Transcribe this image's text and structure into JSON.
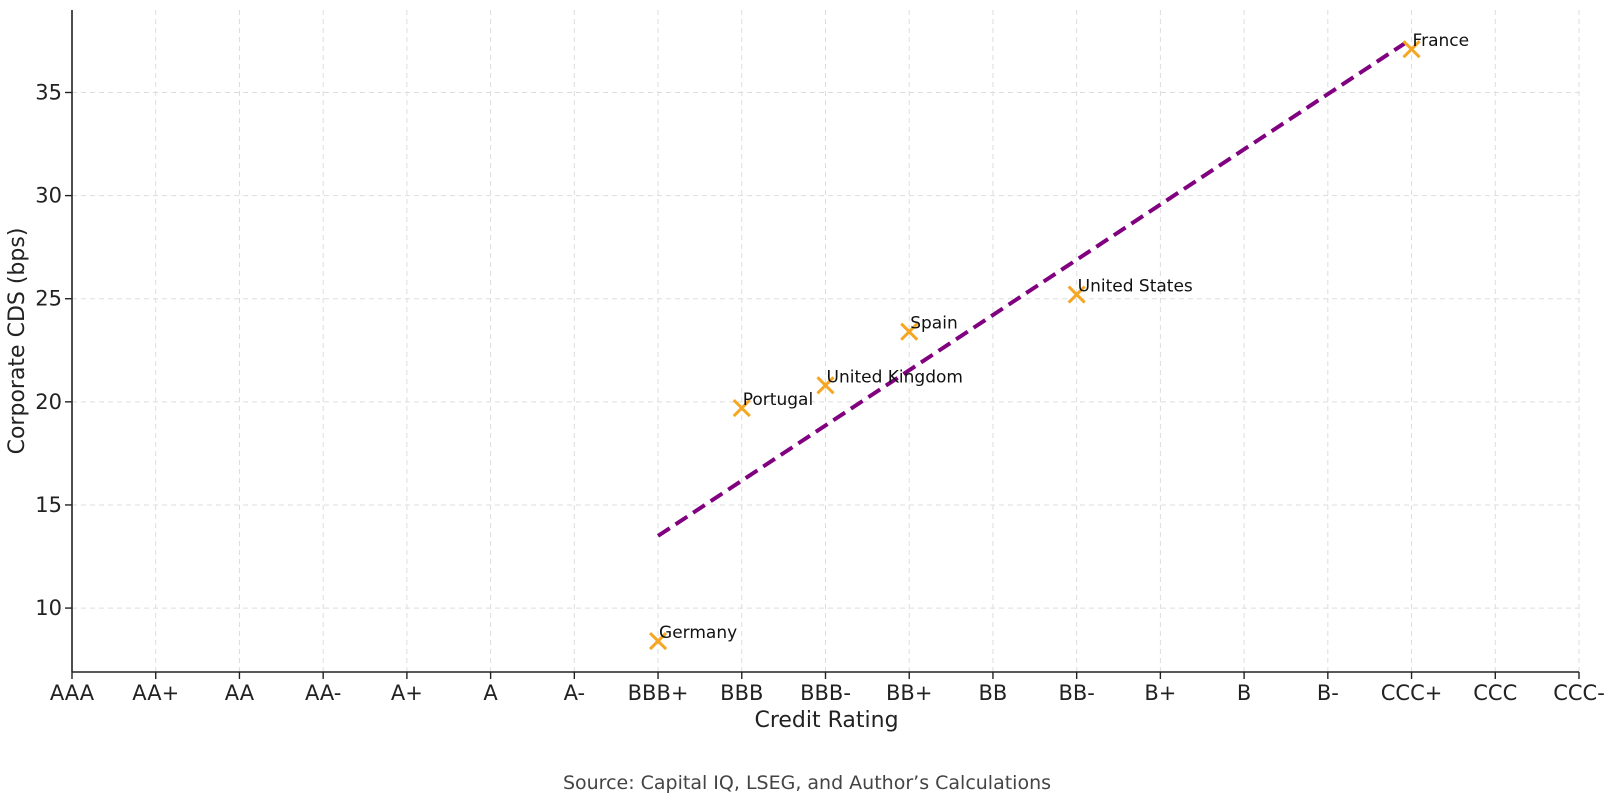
{
  "chart_data": {
    "type": "scatter",
    "xlabel": "Credit Rating",
    "ylabel": "Corporate CDS (bps)",
    "categories": [
      "AAA",
      "AA+",
      "AA",
      "AA-",
      "A+",
      "A",
      "A-",
      "BBB+",
      "BBB",
      "BBB-",
      "BB+",
      "BB",
      "BB-",
      "B+",
      "B",
      "B-",
      "CCC+",
      "CCC",
      "CCC-"
    ],
    "yticks": [
      10,
      15,
      20,
      25,
      30,
      35
    ],
    "ylim": [
      6.9,
      39
    ],
    "grid": true,
    "points": [
      {
        "label": "Germany",
        "x": "BBB+",
        "y": 8.4
      },
      {
        "label": "Portugal",
        "x": "BBB",
        "y": 19.7
      },
      {
        "label": "United Kingdom",
        "x": "BBB-",
        "y": 20.8
      },
      {
        "label": "Spain",
        "x": "BB+",
        "y": 23.4
      },
      {
        "label": "United States",
        "x": "BB-",
        "y": 25.2
      },
      {
        "label": "France",
        "x": "CCC+",
        "y": 37.1
      }
    ],
    "trendline": {
      "x": [
        "BBB+",
        "CCC+"
      ],
      "y": [
        13.5,
        37.6
      ],
      "style": "dashed"
    },
    "colors": {
      "points": "#F5A623",
      "trendline": "#800080",
      "grid": "#dddddd",
      "axis": "#222222"
    }
  },
  "footer": {
    "source": "Source: Capital IQ, LSEG, and Author’s Calculations"
  }
}
